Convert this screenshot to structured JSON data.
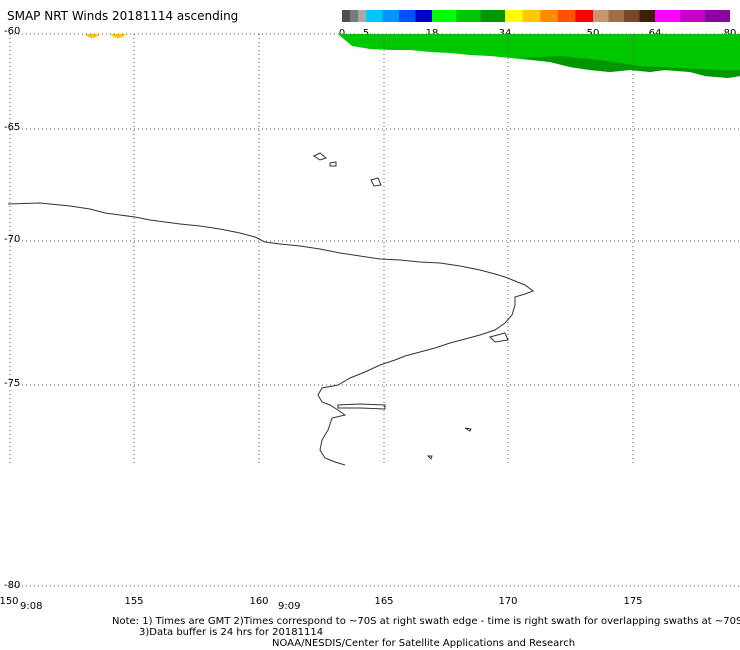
{
  "title": "SMAP NRT Winds 20181114 ascending",
  "colorbar": {
    "ticks": [
      "0",
      "5",
      "18",
      "34",
      "50",
      "64",
      "80"
    ],
    "segments": [
      "#4d4d4d",
      "#7a7a7a",
      "#a8a8a8",
      "#00c8ff",
      "#0096ff",
      "#0050ff",
      "#0000c8",
      "#00ff00",
      "#00c800",
      "#009600",
      "#ffff00",
      "#ffc800",
      "#ff8c00",
      "#ff5000",
      "#ff0000",
      "#c8966e",
      "#a06e46",
      "#784628",
      "#3c1e0a",
      "#ff00ff",
      "#c800c8",
      "#8c00a0"
    ]
  },
  "lat_labels": [
    "-60",
    "-65",
    "-70",
    "-75",
    "-80"
  ],
  "lon_labels": [
    "150",
    "155",
    "160",
    "165",
    "170",
    "175"
  ],
  "time_labels": [
    "9:08",
    "9:09"
  ],
  "notes": {
    "line1": "Note: 1) Times are GMT 2)Times correspond to ~70S at right swath edge - time is right swath for overlapping swaths at ~70S",
    "line2": "3)Data buffer is 24 hrs for 20181114",
    "line3": "NOAA/NESDIS/Center for Satellite Applications and Research"
  },
  "colors": {
    "wind_green": "#00c800",
    "wind_dark_green": "#009600",
    "wind_yellow": "#ffc800",
    "coastline": "#333333",
    "grid": "#555555"
  }
}
